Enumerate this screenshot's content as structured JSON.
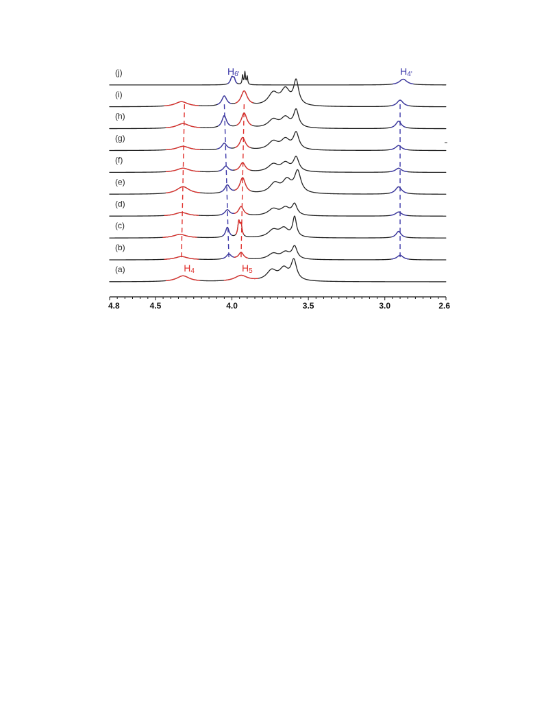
{
  "chart_data": {
    "type": "line",
    "title": "",
    "xlabel": "",
    "ylabel": "",
    "x_axis": {
      "range": [
        4.8,
        2.6
      ],
      "reversed": true,
      "major_ticks": [
        "4.8",
        "4.5",
        "4.0",
        "3.5",
        "3.0",
        "2.6"
      ],
      "major_values": [
        4.8,
        4.5,
        4.0,
        3.5,
        3.0,
        2.6
      ]
    },
    "grid": false,
    "legend": "none",
    "colors": {
      "baseline": "#222222",
      "red_peaks": "#e0302c",
      "blue_peaks": "#3a36a8"
    },
    "series": [
      {
        "label": "(a)",
        "peaks": [
          {
            "x": 4.32,
            "h": 0.35,
            "w": 0.05,
            "color": "red"
          },
          {
            "x": 3.94,
            "h": 0.35,
            "w": 0.05,
            "color": "red"
          },
          {
            "x": 3.74,
            "h": 0.62,
            "w": 0.04
          },
          {
            "x": 3.66,
            "h": 0.7,
            "w": 0.035
          },
          {
            "x": 3.595,
            "h": 1.2,
            "w": 0.022
          }
        ]
      },
      {
        "label": "(b)",
        "peaks": [
          {
            "x": 4.33,
            "h": 0.2,
            "w": 0.05,
            "color": "red"
          },
          {
            "x": 4.02,
            "h": 0.32,
            "w": 0.02,
            "color": "blue"
          },
          {
            "x": 3.94,
            "h": 0.42,
            "w": 0.02,
            "color": "red"
          },
          {
            "x": 3.73,
            "h": 0.35,
            "w": 0.04
          },
          {
            "x": 3.65,
            "h": 0.4,
            "w": 0.035
          },
          {
            "x": 3.59,
            "h": 0.75,
            "w": 0.02
          },
          {
            "x": 2.9,
            "h": 0.28,
            "w": 0.025,
            "color": "blue"
          }
        ]
      },
      {
        "label": "(c)",
        "peaks": [
          {
            "x": 4.34,
            "h": 0.22,
            "w": 0.05,
            "color": "red"
          },
          {
            "x": 4.03,
            "h": 0.62,
            "w": 0.014,
            "color": "blue"
          },
          {
            "x": 3.955,
            "h": 0.9,
            "w": 0.008,
            "color": "red"
          },
          {
            "x": 3.94,
            "h": 0.7,
            "w": 0.008,
            "color": "red"
          },
          {
            "x": 3.73,
            "h": 0.45,
            "w": 0.04
          },
          {
            "x": 3.66,
            "h": 0.52,
            "w": 0.035
          },
          {
            "x": 3.59,
            "h": 1.2,
            "w": 0.015
          },
          {
            "x": 2.91,
            "h": 0.4,
            "w": 0.02,
            "color": "blue"
          }
        ]
      },
      {
        "label": "(d)",
        "peaks": [
          {
            "x": 4.33,
            "h": 0.22,
            "w": 0.05,
            "color": "red"
          },
          {
            "x": 4.03,
            "h": 0.35,
            "w": 0.02,
            "color": "blue"
          },
          {
            "x": 3.94,
            "h": 0.55,
            "w": 0.02,
            "color": "red"
          },
          {
            "x": 3.73,
            "h": 0.4,
            "w": 0.04
          },
          {
            "x": 3.65,
            "h": 0.45,
            "w": 0.035
          },
          {
            "x": 3.59,
            "h": 0.65,
            "w": 0.02
          },
          {
            "x": 2.91,
            "h": 0.25,
            "w": 0.025,
            "color": "blue"
          }
        ]
      },
      {
        "label": "(e)",
        "peaks": [
          {
            "x": 4.32,
            "h": 0.45,
            "w": 0.05,
            "color": "red"
          },
          {
            "x": 4.03,
            "h": 0.5,
            "w": 0.02,
            "color": "blue"
          },
          {
            "x": 3.93,
            "h": 0.95,
            "w": 0.022,
            "color": "red"
          },
          {
            "x": 3.72,
            "h": 0.6,
            "w": 0.04
          },
          {
            "x": 3.64,
            "h": 0.75,
            "w": 0.035
          },
          {
            "x": 3.57,
            "h": 1.3,
            "w": 0.025
          },
          {
            "x": 2.91,
            "h": 0.45,
            "w": 0.025,
            "color": "blue"
          }
        ]
      },
      {
        "label": "(f)",
        "peaks": [
          {
            "x": 4.32,
            "h": 0.25,
            "w": 0.05,
            "color": "red"
          },
          {
            "x": 4.04,
            "h": 0.35,
            "w": 0.02,
            "color": "blue"
          },
          {
            "x": 3.93,
            "h": 0.55,
            "w": 0.022,
            "color": "red"
          },
          {
            "x": 3.73,
            "h": 0.45,
            "w": 0.04
          },
          {
            "x": 3.65,
            "h": 0.5,
            "w": 0.035
          },
          {
            "x": 3.58,
            "h": 0.85,
            "w": 0.022
          },
          {
            "x": 2.91,
            "h": 0.25,
            "w": 0.025,
            "color": "blue"
          }
        ]
      },
      {
        "label": "(g)",
        "peaks": [
          {
            "x": 4.32,
            "h": 0.25,
            "w": 0.05,
            "color": "red"
          },
          {
            "x": 4.05,
            "h": 0.4,
            "w": 0.02,
            "color": "blue"
          },
          {
            "x": 3.93,
            "h": 0.75,
            "w": 0.022,
            "color": "red"
          },
          {
            "x": 3.73,
            "h": 0.5,
            "w": 0.04
          },
          {
            "x": 3.65,
            "h": 0.6,
            "w": 0.035
          },
          {
            "x": 3.58,
            "h": 1.0,
            "w": 0.022
          },
          {
            "x": 2.91,
            "h": 0.3,
            "w": 0.025,
            "color": "blue"
          }
        ]
      },
      {
        "label": "(h)",
        "peaks": [
          {
            "x": 4.32,
            "h": 0.3,
            "w": 0.05,
            "color": "red"
          },
          {
            "x": 4.05,
            "h": 0.75,
            "w": 0.018,
            "color": "blue"
          },
          {
            "x": 3.92,
            "h": 0.9,
            "w": 0.022,
            "color": "red"
          },
          {
            "x": 3.73,
            "h": 0.5,
            "w": 0.04
          },
          {
            "x": 3.65,
            "h": 0.6,
            "w": 0.035
          },
          {
            "x": 3.58,
            "h": 1.05,
            "w": 0.02
          },
          {
            "x": 2.91,
            "h": 0.45,
            "w": 0.022,
            "color": "blue"
          }
        ]
      },
      {
        "label": "(i)",
        "peaks": [
          {
            "x": 4.33,
            "h": 0.3,
            "w": 0.05,
            "color": "red"
          },
          {
            "x": 4.05,
            "h": 0.6,
            "w": 0.02,
            "color": "blue"
          },
          {
            "x": 3.92,
            "h": 0.9,
            "w": 0.025,
            "color": "red"
          },
          {
            "x": 3.73,
            "h": 0.75,
            "w": 0.04
          },
          {
            "x": 3.65,
            "h": 0.95,
            "w": 0.035
          },
          {
            "x": 3.58,
            "h": 1.45,
            "w": 0.02
          },
          {
            "x": 2.9,
            "h": 0.4,
            "w": 0.025,
            "color": "blue"
          }
        ]
      },
      {
        "label": "(j)",
        "peaks": [
          {
            "x": 4.0,
            "h": 0.45,
            "w": 0.012,
            "color": "blue"
          },
          {
            "x": 3.985,
            "h": 0.3,
            "w": 0.008,
            "color": "blue"
          },
          {
            "x": 3.93,
            "h": 0.55,
            "w": 0.004
          },
          {
            "x": 3.915,
            "h": 0.75,
            "w": 0.004
          },
          {
            "x": 3.9,
            "h": 0.5,
            "w": 0.004
          },
          {
            "x": 2.88,
            "h": 0.35,
            "w": 0.03,
            "color": "blue"
          }
        ]
      }
    ],
    "annotations": [
      {
        "id": "H4",
        "text": "H",
        "sub": "4",
        "x": 4.28,
        "on": "(a)",
        "color": "red"
      },
      {
        "id": "H5",
        "text": "H",
        "sub": "5",
        "x": 3.9,
        "on": "(a)",
        "color": "red"
      },
      {
        "id": "H6prime",
        "text": "H",
        "sub": "6'",
        "x": 3.99,
        "on": "(j)",
        "color": "blue"
      },
      {
        "id": "H4prime",
        "text": "H",
        "sub": "4'",
        "x": 2.86,
        "on": "(j)",
        "color": "blue"
      }
    ],
    "guide_lines": [
      {
        "x_from": 4.33,
        "x_to": 4.31,
        "from": "(b)",
        "to": "(i)",
        "color": "red"
      },
      {
        "x_from": 3.94,
        "x_to": 3.92,
        "from": "(b)",
        "to": "(i)",
        "color": "red"
      },
      {
        "x_from": 4.02,
        "x_to": 4.05,
        "from": "(b)",
        "to": "(i)",
        "color": "blue"
      },
      {
        "x_from": 2.9,
        "x_to": 2.9,
        "from": "(b)",
        "to": "(i)",
        "color": "blue"
      }
    ]
  }
}
